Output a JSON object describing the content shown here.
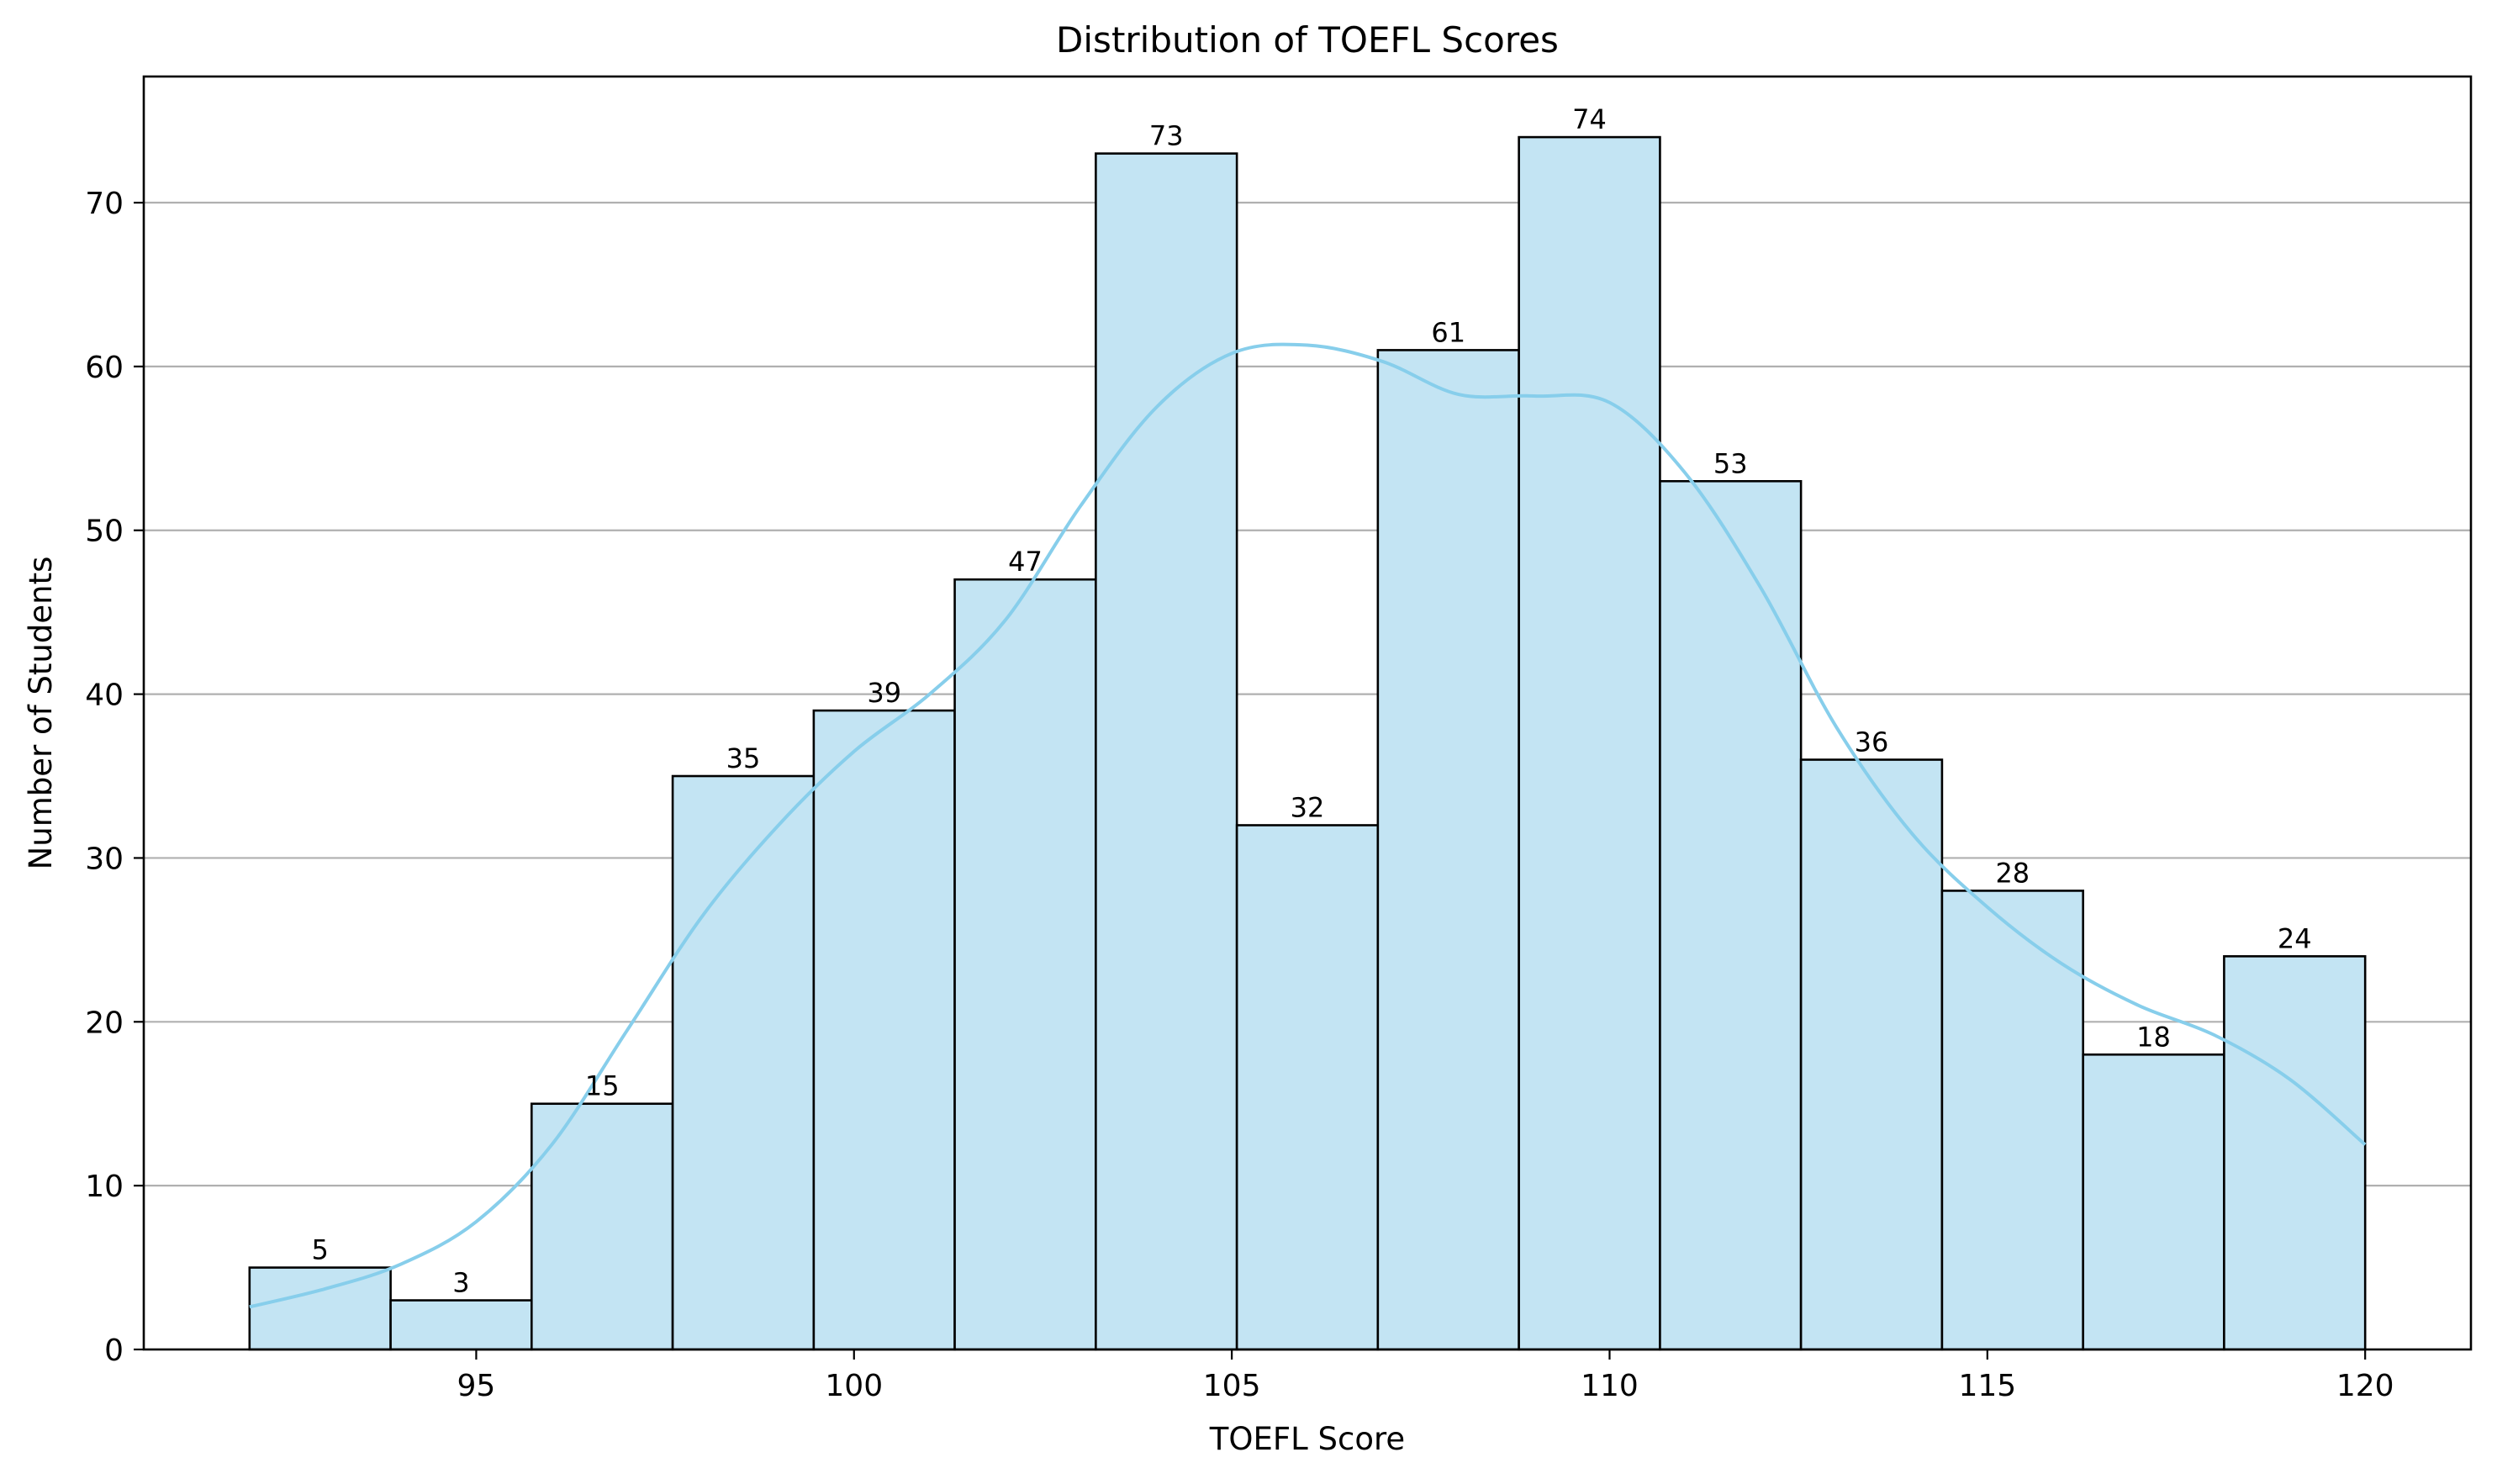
{
  "chart_data": {
    "type": "bar",
    "subtype": "histogram",
    "title": "Distribution of TOEFL Scores",
    "xlabel": "TOEFL Score",
    "ylabel": "Number of Students",
    "xlim": [
      90.6,
      121.4
    ],
    "ylim": [
      0,
      77.7
    ],
    "xticks": [
      95,
      100,
      105,
      110,
      115,
      120
    ],
    "yticks": [
      0,
      10,
      20,
      30,
      40,
      50,
      60,
      70
    ],
    "grid": "y-axis only",
    "bins": {
      "edges": [
        92,
        93.867,
        95.733,
        97.6,
        99.467,
        101.333,
        103.2,
        105.067,
        106.933,
        108.8,
        110.667,
        112.533,
        114.4,
        116.267,
        118.133,
        120
      ],
      "counts": [
        5,
        3,
        15,
        35,
        39,
        47,
        73,
        32,
        61,
        74,
        53,
        36,
        28,
        18,
        24
      ]
    },
    "kde": {
      "x": [
        92,
        93,
        94,
        95,
        96,
        97,
        98,
        99,
        100,
        101,
        102,
        103,
        104,
        105,
        106,
        107,
        108,
        109,
        110,
        111,
        112,
        113,
        114,
        115,
        116,
        117,
        118,
        119,
        120
      ],
      "y": [
        2.6,
        3.7,
        5.2,
        7.8,
        12.5,
        19.5,
        26.5,
        32.0,
        36.5,
        40.0,
        44.5,
        51.5,
        57.5,
        60.8,
        61.3,
        60.3,
        58.3,
        58.2,
        57.8,
        53.5,
        46.5,
        38.0,
        31.5,
        27.0,
        23.5,
        21.0,
        19.2,
        16.5,
        12.5
      ]
    },
    "colors": {
      "bar_fill": "#c3e4f3",
      "bar_edge": "#000000",
      "kde_line": "#87ceeb",
      "grid": "#b0b0b0"
    }
  }
}
